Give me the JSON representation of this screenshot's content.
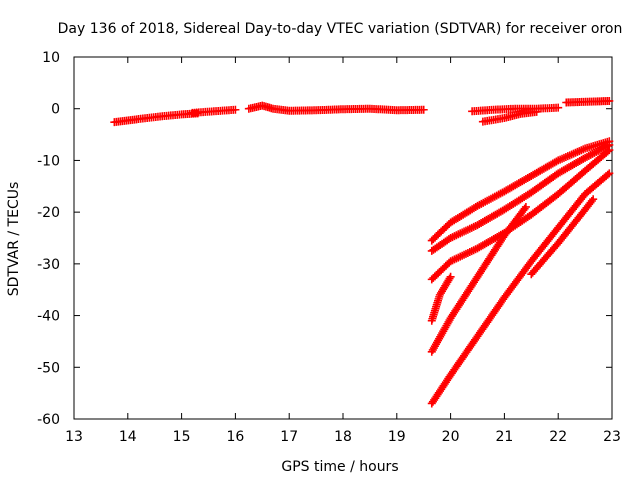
{
  "chart_data": {
    "type": "scatter",
    "title": "Day 136 of 2018, Sidereal Day-to-day VTEC variation (SDTVAR) for receiver oron",
    "xlabel": "GPS time / hours",
    "ylabel": "SDTVAR / TECUs",
    "xlim": [
      13,
      23
    ],
    "ylim": [
      -60,
      10
    ],
    "xticks": [
      "13",
      "14",
      "15",
      "16",
      "17",
      "18",
      "19",
      "20",
      "21",
      "22",
      "23"
    ],
    "yticks": [
      "10",
      "0",
      "-10",
      "-20",
      "-30",
      "-40",
      "-50",
      "-60"
    ],
    "grid": false,
    "legend": "none",
    "marker": "plus",
    "series_color": "#ff0000",
    "series": [
      {
        "x": [
          13.75,
          14.2,
          14.6,
          15.0,
          15.3
        ],
        "y": [
          -2.6,
          -2.0,
          -1.5,
          -1.1,
          -0.9
        ]
      },
      {
        "x": [
          15.2,
          15.6,
          16.0
        ],
        "y": [
          -0.8,
          -0.5,
          -0.2
        ]
      },
      {
        "x": [
          16.25,
          16.5,
          16.7,
          17.0,
          17.5,
          18.0,
          18.5,
          19.0,
          19.5
        ],
        "y": [
          0.0,
          0.6,
          0.0,
          -0.4,
          -0.3,
          -0.1,
          0.0,
          -0.3,
          -0.2
        ]
      },
      {
        "x": [
          20.4,
          20.8,
          21.2,
          21.6,
          22.0
        ],
        "y": [
          -0.5,
          -0.2,
          0.0,
          0.0,
          0.2
        ]
      },
      {
        "x": [
          20.6,
          21.0,
          21.3,
          21.6
        ],
        "y": [
          -2.5,
          -1.8,
          -1.0,
          -0.6
        ]
      },
      {
        "x": [
          22.15,
          22.4,
          22.7,
          22.95
        ],
        "y": [
          1.2,
          1.3,
          1.4,
          1.5
        ]
      },
      {
        "x": [
          19.65,
          20.0,
          20.5,
          21.0,
          21.5,
          22.0,
          22.5,
          22.95
        ],
        "y": [
          -25.5,
          -22.0,
          -18.8,
          -16.0,
          -13.0,
          -10.0,
          -7.7,
          -6.3
        ]
      },
      {
        "x": [
          19.65,
          20.0,
          20.5,
          21.0,
          21.5,
          22.0,
          22.5,
          22.95
        ],
        "y": [
          -27.5,
          -25.0,
          -22.5,
          -19.5,
          -16.2,
          -12.5,
          -9.5,
          -7.0
        ]
      },
      {
        "x": [
          19.65,
          20.0,
          20.5,
          21.0,
          21.5,
          22.0,
          22.5,
          22.95
        ],
        "y": [
          -33.0,
          -29.5,
          -27.0,
          -24.0,
          -20.5,
          -16.5,
          -12.0,
          -8.0
        ]
      },
      {
        "x": [
          19.65,
          19.8,
          20.0
        ],
        "y": [
          -41.0,
          -36.0,
          -32.5
        ]
      },
      {
        "x": [
          19.65,
          20.0,
          20.5,
          21.0,
          21.4
        ],
        "y": [
          -47.0,
          -40.5,
          -32.5,
          -24.5,
          -19.0
        ]
      },
      {
        "x": [
          19.65,
          20.0,
          20.5,
          21.0,
          21.5,
          22.0,
          22.5,
          22.95
        ],
        "y": [
          -57.0,
          -51.5,
          -44.0,
          -36.5,
          -29.5,
          -23.0,
          -16.5,
          -12.5
        ]
      },
      {
        "x": [
          22.65,
          22.5,
          22.0,
          21.5
        ],
        "y": [
          -17.5,
          -19.5,
          -26.0,
          -32.0
        ]
      }
    ]
  }
}
